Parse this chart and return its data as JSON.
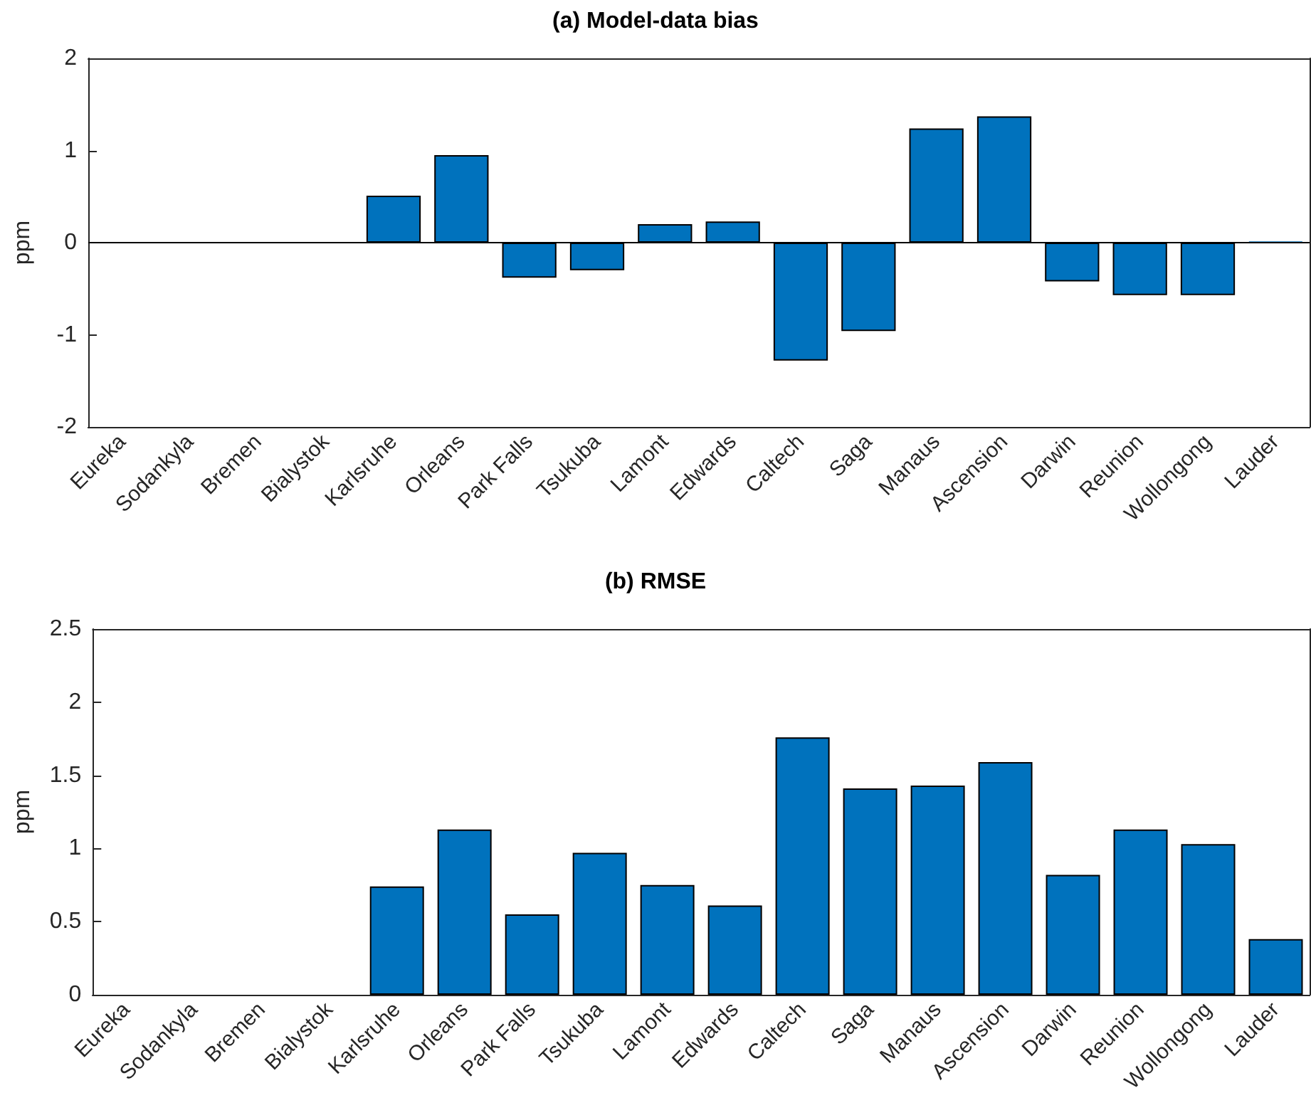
{
  "chart_data": [
    {
      "type": "bar",
      "title": "(a) Model-data bias",
      "ylabel": "ppm",
      "categories": [
        "Eureka",
        "Sodankyla",
        "Bremen",
        "Bialystok",
        "Karlsruhe",
        "Orleans",
        "Park Falls",
        "Tsukuba",
        "Lamont",
        "Edwards",
        "Caltech",
        "Saga",
        "Manaus",
        "Ascension",
        "Darwin",
        "Reunion",
        "Wollongong",
        "Lauder"
      ],
      "values": [
        null,
        null,
        null,
        null,
        0.51,
        0.95,
        -0.38,
        -0.3,
        0.2,
        0.23,
        -1.28,
        -0.96,
        1.24,
        1.37,
        -0.42,
        -0.57,
        -0.57,
        0.01
      ],
      "color": "#0072bd",
      "ylim": [
        -2,
        2
      ],
      "yticks": [
        -2,
        -1,
        0,
        1,
        2
      ],
      "grid": false,
      "ref_lines": [
        {
          "axis": "y",
          "value": 0,
          "color": "#000000"
        }
      ]
    },
    {
      "type": "bar",
      "title": "(b) RMSE",
      "ylabel": "ppm",
      "categories": [
        "Eureka",
        "Sodankyla",
        "Bremen",
        "Bialystok",
        "Karlsruhe",
        "Orleans",
        "Park Falls",
        "Tsukuba",
        "Lamont",
        "Edwards",
        "Caltech",
        "Saga",
        "Manaus",
        "Ascension",
        "Darwin",
        "Reunion",
        "Wollongong",
        "Lauder"
      ],
      "values": [
        null,
        null,
        null,
        null,
        0.74,
        1.13,
        0.55,
        0.97,
        0.75,
        0.61,
        1.76,
        1.41,
        1.43,
        1.59,
        0.82,
        1.13,
        1.03,
        0.38
      ],
      "color": "#0072bd",
      "ylim": [
        0,
        2.5
      ],
      "yticks": [
        0,
        0.5,
        1,
        1.5,
        2,
        2.5
      ],
      "grid": false
    }
  ]
}
